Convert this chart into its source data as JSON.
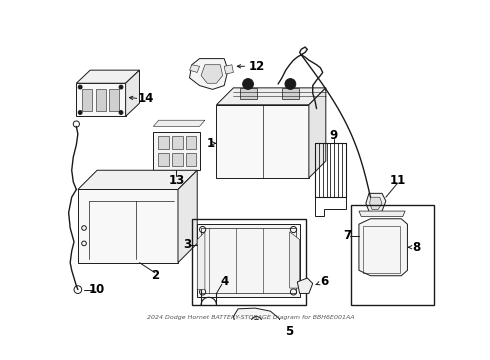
{
  "title": "2024 Dodge Hornet BATTERY-STORAGE Diagram for BBH6E001AA",
  "bg": "#ffffff",
  "lc": "#1a1a1a",
  "fig_w": 4.9,
  "fig_h": 3.6,
  "dpi": 100
}
